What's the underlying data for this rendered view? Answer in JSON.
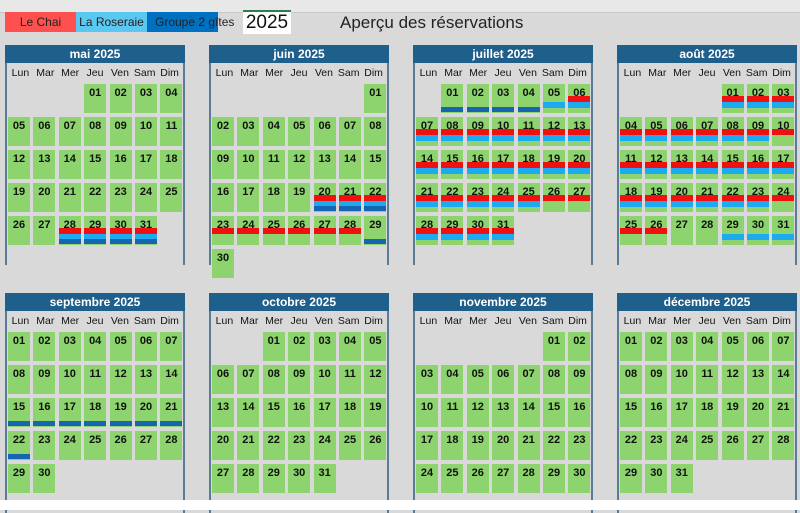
{
  "legend": [
    {
      "label": "Le Chai",
      "color": "#ff5050",
      "key": "r"
    },
    {
      "label": "La Roseraie",
      "color": "#5ac8f0",
      "key": "l"
    },
    {
      "label": "Groupe 2 gîtes",
      "color": "#0070c0",
      "key": "d"
    }
  ],
  "bar_colors": {
    "r": "#f01010",
    "l": "#1eaaf0",
    "d": "#1565b0"
  },
  "year": "2025",
  "title": "Aperçu des réservations",
  "day_names": [
    "Lun",
    "Mar",
    "Mer",
    "Jeu",
    "Ven",
    "Sam",
    "Dim"
  ],
  "months": [
    {
      "name": "mai 2025",
      "offset": 3,
      "days": 31,
      "bookings": {
        "28": "rld",
        "29": "rld",
        "30": "rld",
        "31": "rld"
      }
    },
    {
      "name": "juin 2025",
      "offset": 6,
      "days": 30,
      "bookings": {
        "20": "rld",
        "21": "rld",
        "22": "rld",
        "23": "r",
        "24": "r",
        "25": "r",
        "26": "r",
        "27": "r",
        "28": "r",
        "29": "d"
      }
    },
    {
      "name": "juillet 2025",
      "offset": 1,
      "days": 31,
      "bookings": {
        "1": "d",
        "2": "d",
        "3": "d",
        "4": "d",
        "5": "l",
        "6": "rl",
        "7": "rl",
        "8": "rl",
        "9": "rl",
        "10": "rl",
        "11": "rl",
        "12": "rl",
        "13": "rl",
        "14": "rl",
        "15": "rl",
        "16": "rl",
        "17": "rl",
        "18": "rl",
        "19": "rl",
        "20": "rl",
        "21": "rl",
        "22": "rl",
        "23": "rl",
        "24": "rl",
        "25": "rl",
        "26": "r",
        "27": "r",
        "28": "rl",
        "29": "rl",
        "30": "rl",
        "31": "rl"
      }
    },
    {
      "name": "août 2025",
      "offset": 4,
      "days": 31,
      "bookings": {
        "1": "rl",
        "2": "rl",
        "3": "rl",
        "4": "rl",
        "5": "rl",
        "6": "rl",
        "7": "rl",
        "8": "rl",
        "9": "rl",
        "10": "r",
        "11": "rl",
        "12": "rl",
        "13": "rl",
        "14": "rl",
        "15": "rl",
        "16": "rl",
        "17": "rl",
        "18": "rl",
        "19": "rl",
        "20": "rl",
        "21": "rl",
        "22": "rl",
        "23": "rl",
        "24": "r",
        "25": "r",
        "26": "r",
        "29": "l",
        "30": "l",
        "31": "l"
      }
    },
    {
      "name": "septembre 2025",
      "offset": 0,
      "days": 30,
      "bookings": {
        "15": "d",
        "16": "d",
        "17": "d",
        "18": "d",
        "19": "d",
        "20": "d",
        "21": "d",
        "22": "d"
      }
    },
    {
      "name": "octobre 2025",
      "offset": 2,
      "days": 31,
      "bookings": {}
    },
    {
      "name": "novembre 2025",
      "offset": 5,
      "days": 30,
      "bookings": {}
    },
    {
      "name": "décembre 2025",
      "offset": 0,
      "days": 31,
      "bookings": {}
    }
  ]
}
